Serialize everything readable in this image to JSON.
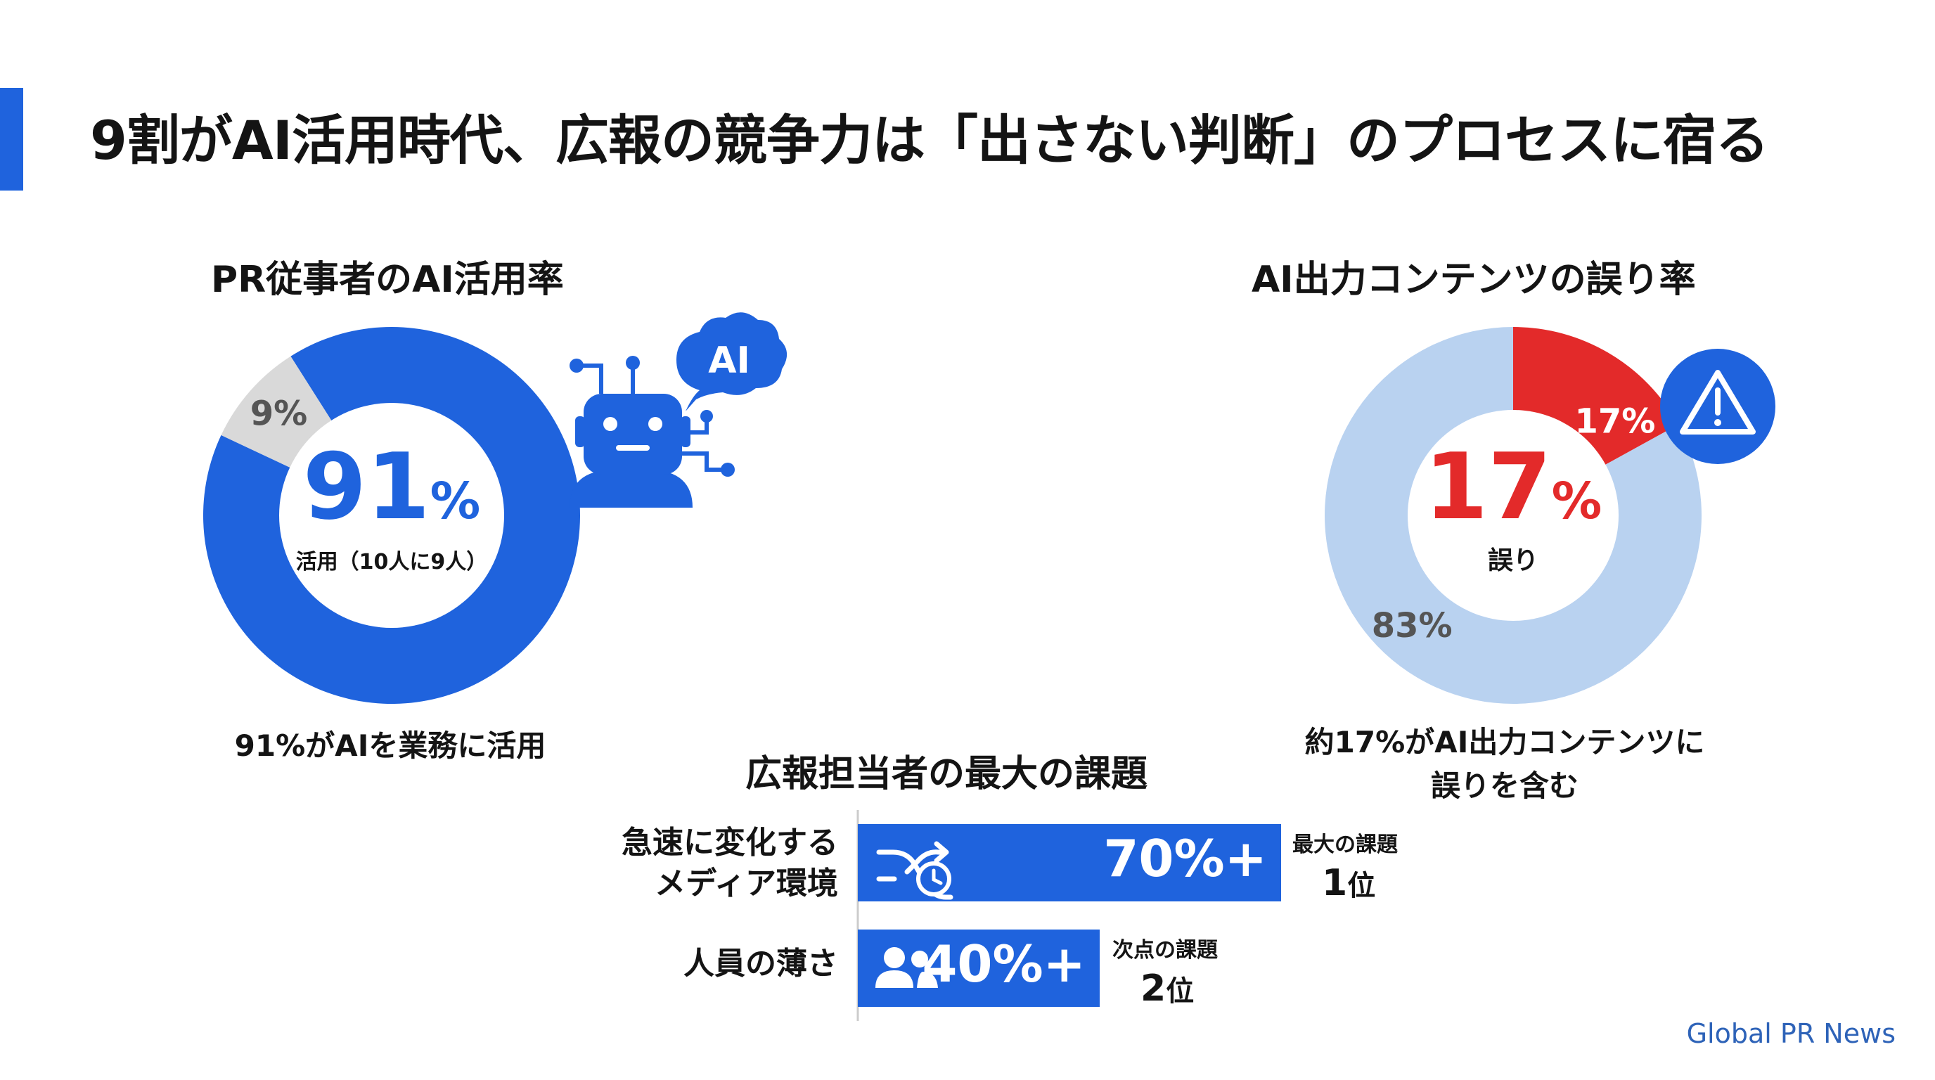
{
  "title": "9割がAI活用時代、広報の競争力は「出さない判断」のプロセスに宿る",
  "source": "Global PR News",
  "colors": {
    "accent": "#1f63dd",
    "gray_slice": "#d9d9d9",
    "light_blue_slice": "#b9d2f0",
    "red_slice": "#e32a2a",
    "warning_circle": "#1f63dd"
  },
  "icons": {
    "robot": "robot-ai-icon",
    "warning": "warning-triangle-icon",
    "media": "shuffle-clock-icon",
    "people": "people-icon"
  },
  "chart_data": [
    {
      "type": "pie",
      "title": "PR従事者のAI活用率",
      "slices": [
        {
          "label": "91%",
          "value": 91,
          "color": "#1f63dd"
        },
        {
          "label": "9%",
          "value": 9,
          "color": "#d9d9d9"
        }
      ],
      "center_value": "91",
      "center_unit": "%",
      "center_sub": "活用（10人に9人）",
      "caption": "91%がAIを業務に活用"
    },
    {
      "type": "pie",
      "title": "AI出力コンテンツの誤り率",
      "slices": [
        {
          "label": "17%",
          "value": 17,
          "color": "#e32a2a"
        },
        {
          "label": "83%",
          "value": 83,
          "color": "#b9d2f0"
        }
      ],
      "center_value": "17",
      "center_unit": "%",
      "center_sub": "誤り",
      "caption": [
        "約17%がAI出力コンテンツに",
        "誤りを含む"
      ]
    },
    {
      "type": "bar",
      "title": "広報担当者の最大の課題",
      "categories": [
        [
          "急速に変化する",
          "メディア環境"
        ],
        [
          "人員の薄さ"
        ]
      ],
      "values": [
        70,
        40
      ],
      "value_labels": [
        "70%+",
        "40%+"
      ],
      "ranks": [
        {
          "sub": "最大の課題",
          "main": "1",
          "unit": "位"
        },
        {
          "sub": "次点の課題",
          "main": "2",
          "unit": "位"
        }
      ]
    }
  ]
}
